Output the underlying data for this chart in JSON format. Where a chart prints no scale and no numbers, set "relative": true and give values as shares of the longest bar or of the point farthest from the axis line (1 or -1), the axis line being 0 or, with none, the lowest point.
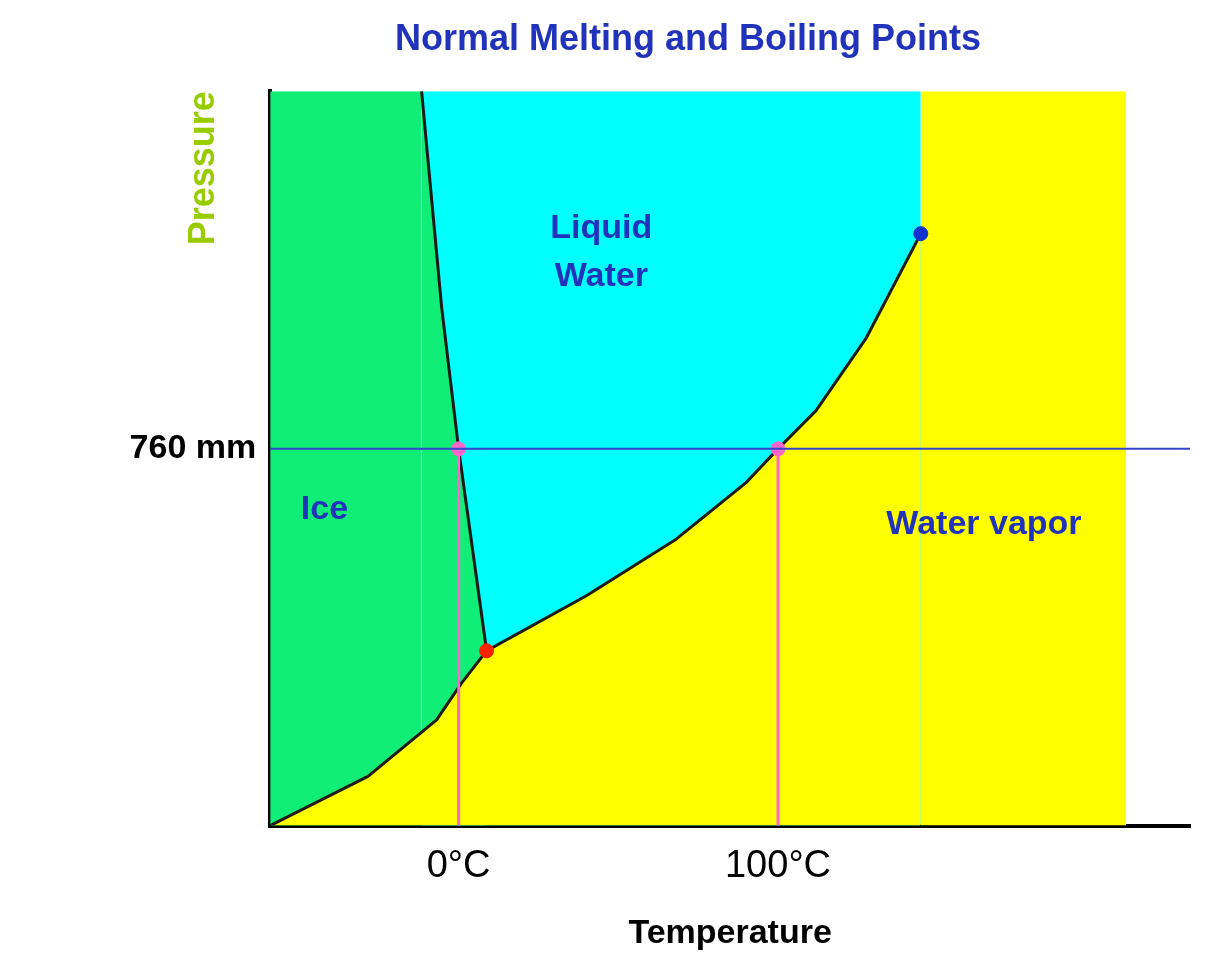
{
  "chart_data": {
    "type": "line",
    "title": "Normal Melting and Boiling Points",
    "xlabel": "Temperature",
    "ylabel": "Pressure",
    "relative": true,
    "xlim": [
      -59,
      229
    ],
    "xticks": [
      {
        "value": 0,
        "label": "0°C"
      },
      {
        "value": 100,
        "label": "100°C"
      }
    ],
    "grid": false,
    "legend": false,
    "series": [
      {
        "type": "area",
        "name": "Liquid Water",
        "color": "#00ffff",
        "x": [
          -11.6,
          144.7
        ],
        "values": [
          1,
          1
        ]
      },
      {
        "type": "area",
        "name": "Ice",
        "color": "#11ee77",
        "x": [
          -59,
          -11.6,
          -5.3,
          0,
          8.75
        ],
        "values": [
          1,
          1,
          0.705,
          0.513,
          0.238
        ]
      },
      {
        "type": "area",
        "name": "Water vapor",
        "color": "#ffff00",
        "x": [
          -59,
          -28.4,
          -6.9,
          0.9,
          8.75,
          40,
          68.1,
          90,
          100,
          111.9,
          127.5,
          144.7,
          144.7,
          209
        ],
        "values": [
          0,
          0.067,
          0.144,
          0.194,
          0.238,
          0.313,
          0.39,
          0.467,
          0.513,
          0.565,
          0.663,
          0.806,
          1,
          1
        ]
      },
      {
        "type": "line",
        "color": "#ff66cc",
        "x": [
          0,
          0
        ],
        "values": [
          0,
          0.513
        ]
      },
      {
        "type": "line",
        "color": "#ff66cc",
        "x": [
          100,
          100
        ],
        "values": [
          0,
          0.513
        ]
      },
      {
        "type": "scatter",
        "color": "#ff66cc",
        "x": [
          0,
          100
        ],
        "values": [
          0.513,
          0.513
        ]
      },
      {
        "type": "scatter",
        "color": "#ff2200",
        "x": [
          8.75
        ],
        "values": [
          0.238
        ]
      },
      {
        "type": "scatter",
        "color": "#1133cc",
        "x": [
          144.7
        ],
        "values": [
          0.806
        ]
      }
    ],
    "ref_lines": [
      {
        "axis": "y",
        "value": 0.513,
        "label": "760 mm",
        "color": "#3344cc"
      }
    ]
  }
}
